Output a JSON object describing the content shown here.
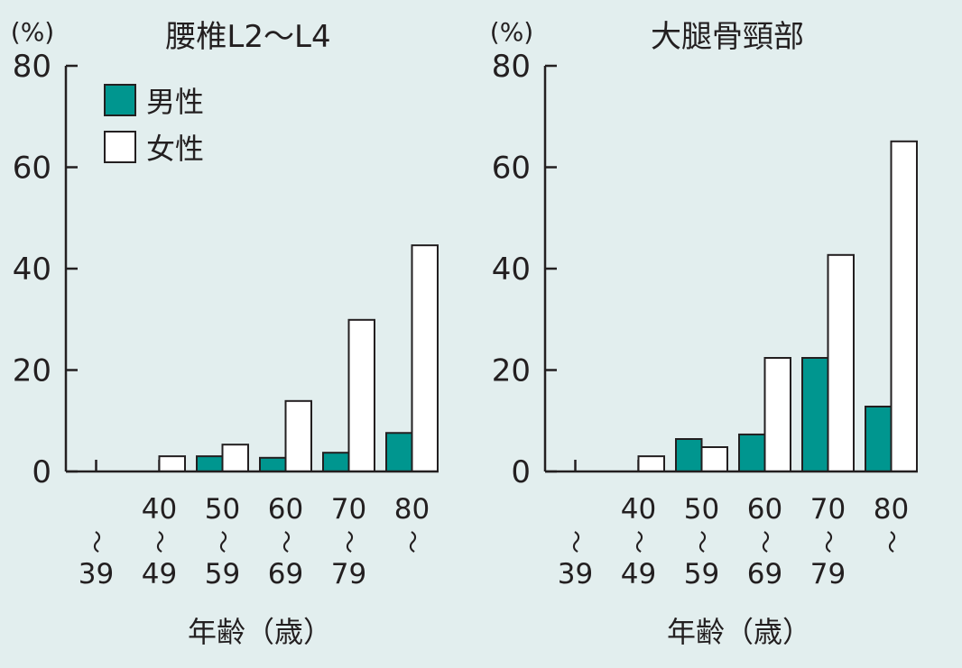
{
  "colors": {
    "background": "#e2eeee",
    "male": "#00968f",
    "female": "#ffffff",
    "axis": "#231f20"
  },
  "chart_data": [
    {
      "type": "bar",
      "title": "腰椎L2〜L4",
      "ylabel": "(%)",
      "xlabel": "年齢（歳）",
      "ylim": [
        0,
        80
      ],
      "yticks": [
        "0",
        "20",
        "40",
        "60",
        "80"
      ],
      "categories": [
        [
          "〜",
          "39"
        ],
        [
          "40",
          "〜",
          "49"
        ],
        [
          "50",
          "〜",
          "59"
        ],
        [
          "60",
          "〜",
          "69"
        ],
        [
          "70",
          "〜",
          "79"
        ],
        [
          "80",
          "〜"
        ]
      ],
      "legend": {
        "position": "top-left",
        "entries": [
          "男性",
          "女性"
        ]
      },
      "series": [
        {
          "name": "男性",
          "values": [
            0,
            0,
            3.0,
            2.7,
            3.7,
            7.6
          ]
        },
        {
          "name": "女性",
          "values": [
            0,
            3.0,
            5.3,
            13.9,
            29.9,
            44.6
          ]
        }
      ]
    },
    {
      "type": "bar",
      "title": "大腿骨頸部",
      "ylabel": "(%)",
      "xlabel": "年齢（歳）",
      "ylim": [
        0,
        80
      ],
      "yticks": [
        "0",
        "20",
        "40",
        "60",
        "80"
      ],
      "categories": [
        [
          "〜",
          "39"
        ],
        [
          "40",
          "〜",
          "49"
        ],
        [
          "50",
          "〜",
          "59"
        ],
        [
          "60",
          "〜",
          "69"
        ],
        [
          "70",
          "〜",
          "79"
        ],
        [
          "80",
          "〜"
        ]
      ],
      "series": [
        {
          "name": "男性",
          "values": [
            0,
            0,
            6.4,
            7.3,
            22.4,
            12.8
          ]
        },
        {
          "name": "女性",
          "values": [
            0,
            3.0,
            4.8,
            22.4,
            42.7,
            65.1
          ]
        }
      ]
    }
  ]
}
